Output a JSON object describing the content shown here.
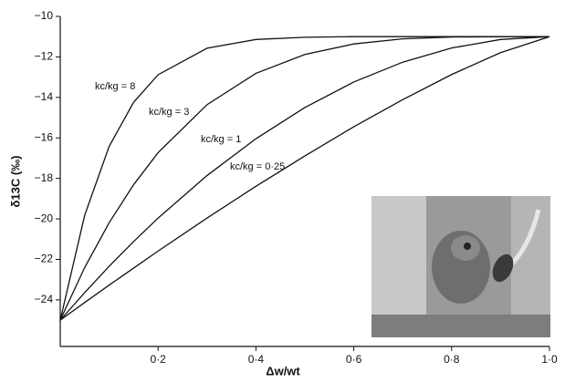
{
  "chart_data": {
    "type": "line",
    "x_label": "Δw/wt",
    "y_label": "δ13C (‰)",
    "x": [
      0,
      0.05,
      0.1,
      0.15,
      0.2,
      0.3,
      0.4,
      0.5,
      0.6,
      0.7,
      0.8,
      0.9,
      1.0
    ],
    "series": [
      {
        "name": "kc/kg = 8",
        "color": "#111111",
        "values": [
          -25,
          -19.82,
          -16.42,
          -14.24,
          -12.88,
          -11.57,
          -11.14,
          -11.03,
          -11.0,
          -11.0,
          -11.0,
          -11.0,
          -11
        ]
      },
      {
        "name": "kc/kg = 3",
        "color": "#111111",
        "values": [
          -25,
          -22.4,
          -20.19,
          -18.31,
          -16.73,
          -14.36,
          -12.81,
          -11.88,
          -11.36,
          -11.11,
          -11.02,
          -11.0,
          -11
        ]
      },
      {
        "name": "kc/kg = 1",
        "color": "#111111",
        "values": [
          -25,
          -23.64,
          -22.34,
          -21.12,
          -19.96,
          -17.86,
          -16.04,
          -14.5,
          -13.24,
          -12.26,
          -11.56,
          -11.14,
          -11
        ]
      },
      {
        "name": "kc/kg = 0·25",
        "color": "#111111",
        "values": [
          -25,
          -24.13,
          -23.27,
          -22.43,
          -21.59,
          -19.96,
          -18.39,
          -16.89,
          -15.45,
          -14.11,
          -12.87,
          -11.79,
          -11
        ]
      }
    ],
    "xlim": [
      0,
      1
    ],
    "ylim": [
      -26.3,
      -10
    ],
    "xticks": [
      {
        "value": 0.2,
        "label": "0·2"
      },
      {
        "value": 0.4,
        "label": "0·4"
      },
      {
        "value": 0.6,
        "label": "0·6"
      },
      {
        "value": 0.8,
        "label": "0·8"
      },
      {
        "value": 1.0,
        "label": "1·0"
      }
    ],
    "yticks": [
      {
        "value": -10,
        "label": "−10"
      },
      {
        "value": -12,
        "label": "−12"
      },
      {
        "value": -14,
        "label": "−14"
      },
      {
        "value": -16,
        "label": "−16"
      },
      {
        "value": -18,
        "label": "−18"
      },
      {
        "value": -20,
        "label": "−20"
      },
      {
        "value": -22,
        "label": "−22"
      },
      {
        "value": -24,
        "label": "−24"
      }
    ]
  }
}
